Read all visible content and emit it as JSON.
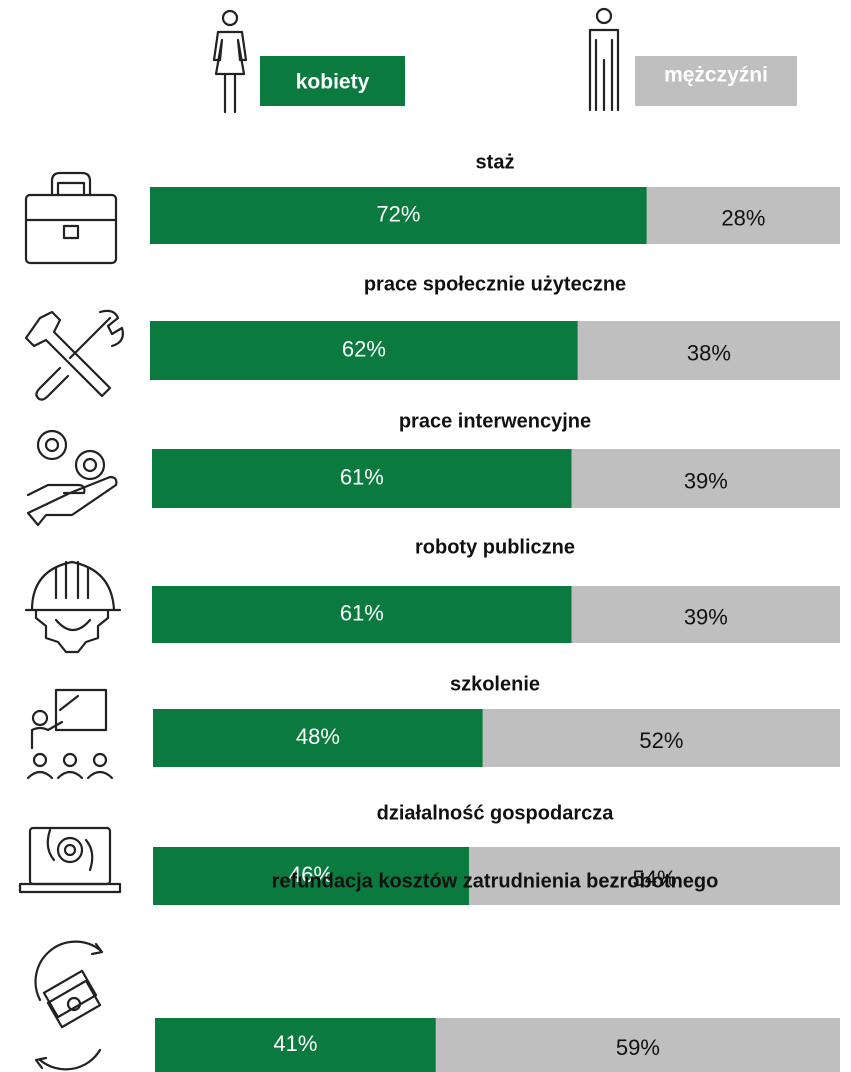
{
  "chart_data": {
    "type": "stacked-bar-100",
    "categories": [
      "staż",
      "prace społecznie użyteczne",
      "prace interwencyjne",
      "roboty publiczne",
      "szkolenie",
      "działalność gospodarcza",
      "refundacja kosztów zatrudnienia bezrobotnego"
    ],
    "series": [
      {
        "name": "kobiety",
        "color": "#0a7a3e",
        "values": [
          72,
          62,
          61,
          61,
          48,
          46,
          41
        ],
        "value_labels": [
          "72%",
          "62%",
          "61%",
          "61%",
          "48%",
          "46%",
          "41%"
        ]
      },
      {
        "name": "mężczyźni",
        "color": "#bfbfbf",
        "values": [
          28,
          38,
          39,
          39,
          52,
          54,
          59
        ],
        "value_labels": [
          "28%",
          "38%",
          "39%",
          "39%",
          "52%",
          "54%",
          "59%"
        ]
      }
    ]
  }
}
